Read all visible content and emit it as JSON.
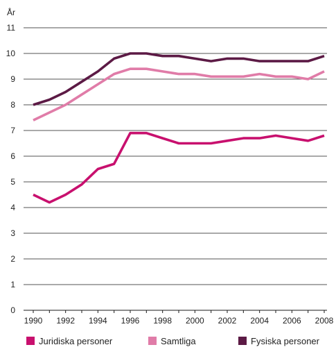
{
  "chart_data": {
    "type": "line",
    "ylabel": "År",
    "ylim": [
      0,
      11
    ],
    "yticks": [
      0,
      1,
      2,
      3,
      4,
      5,
      6,
      7,
      8,
      9,
      10,
      11
    ],
    "xlim": [
      1990,
      2008
    ],
    "xticks": [
      1990,
      1992,
      1994,
      1996,
      1998,
      2000,
      2002,
      2004,
      2006,
      2008
    ],
    "grid": "horizontal",
    "legend": "bottom",
    "x": [
      1990,
      1991,
      1992,
      1993,
      1994,
      1995,
      1996,
      1997,
      1998,
      1999,
      2000,
      2001,
      2002,
      2003,
      2004,
      2005,
      2006,
      2007,
      2008
    ],
    "series": [
      {
        "name": "Juridiska personer",
        "color": "#c8106e",
        "values": [
          4.5,
          4.2,
          4.5,
          4.9,
          5.5,
          5.7,
          6.9,
          6.9,
          6.7,
          6.5,
          6.5,
          6.5,
          6.6,
          6.7,
          6.7,
          6.8,
          6.7,
          6.6,
          6.8
        ]
      },
      {
        "name": "Samtliga",
        "color": "#e07ca8",
        "values": [
          7.4,
          7.7,
          8.0,
          8.4,
          8.8,
          9.2,
          9.4,
          9.4,
          9.3,
          9.2,
          9.2,
          9.1,
          9.1,
          9.1,
          9.2,
          9.1,
          9.1,
          9.0,
          9.3
        ]
      },
      {
        "name": "Fysiska personer",
        "color": "#5c1a45",
        "values": [
          8.0,
          8.2,
          8.5,
          8.9,
          9.3,
          9.8,
          10.0,
          10.0,
          9.9,
          9.9,
          9.8,
          9.7,
          9.8,
          9.8,
          9.7,
          9.7,
          9.7,
          9.7,
          9.9
        ]
      }
    ]
  }
}
